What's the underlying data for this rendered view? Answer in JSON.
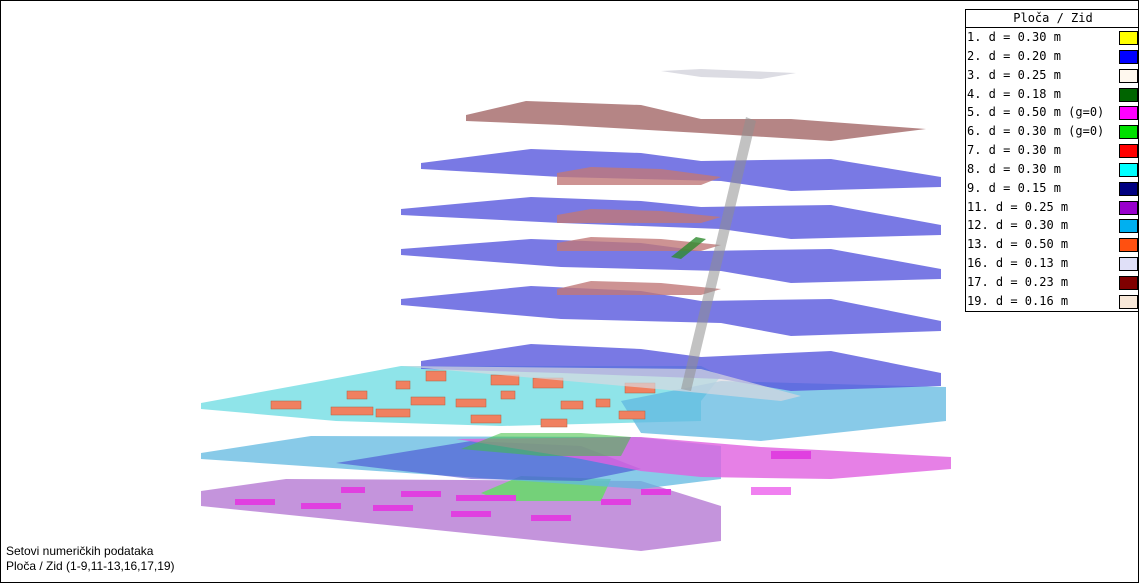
{
  "legend": {
    "title": "Ploča / Zid",
    "items": [
      {
        "label": "1. d = 0.30 m",
        "color": "#ffff00"
      },
      {
        "label": "2. d = 0.20 m",
        "color": "#0000ff"
      },
      {
        "label": "3. d = 0.25 m",
        "color": "#fff8ee"
      },
      {
        "label": "4. d = 0.18 m",
        "color": "#006400"
      },
      {
        "label": "5. d = 0.50 m (g=0)",
        "color": "#ff00ff"
      },
      {
        "label": "6. d = 0.30 m (g=0)",
        "color": "#00e000"
      },
      {
        "label": "7. d = 0.30 m",
        "color": "#ff0000"
      },
      {
        "label": "8. d = 0.30 m",
        "color": "#00ffff"
      },
      {
        "label": "9. d = 0.15 m",
        "color": "#000080"
      },
      {
        "label": "11. d = 0.25 m",
        "color": "#9900cc"
      },
      {
        "label": "12. d = 0.30 m",
        "color": "#00b0f0"
      },
      {
        "label": "13. d = 0.50 m",
        "color": "#ff5010"
      },
      {
        "label": "16. d = 0.13 m",
        "color": "#e0e0f8"
      },
      {
        "label": "17. d = 0.23 m",
        "color": "#800000"
      },
      {
        "label": "19. d = 0.16 m",
        "color": "#f8e8d8"
      }
    ]
  },
  "caption": {
    "line1": "Setovi numeričkih podataka",
    "line2": "Ploča / Zid (1-9,11-13,16,17,19)"
  }
}
